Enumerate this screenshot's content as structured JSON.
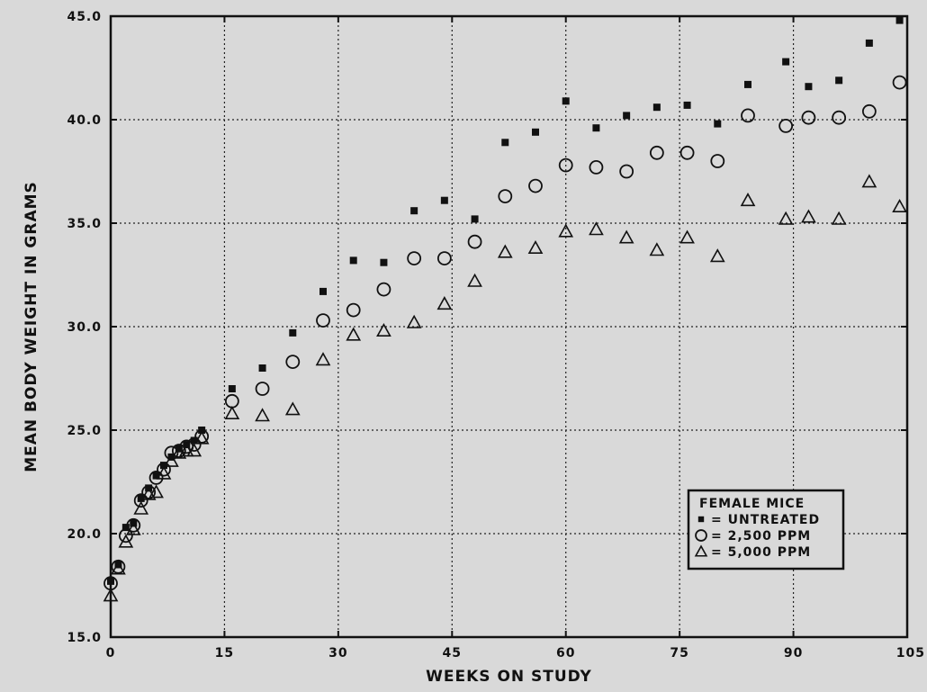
{
  "chart_data": {
    "type": "scatter",
    "xlabel": "WEEKS ON STUDY",
    "ylabel": "MEAN BODY WEIGHT IN GRAMS",
    "xlim": [
      0,
      105
    ],
    "ylim": [
      15,
      45
    ],
    "x_ticks": [
      0,
      15,
      30,
      45,
      60,
      75,
      90,
      105
    ],
    "x_tick_labels": [
      "0",
      "15",
      "30",
      "45",
      "60",
      "75",
      "90",
      "105"
    ],
    "y_ticks": [
      15,
      20,
      25,
      30,
      35,
      40,
      45
    ],
    "y_tick_labels": [
      "15.0",
      "20.0",
      "25.0",
      "30.0",
      "35.0",
      "40.0",
      "45.0"
    ],
    "grid": true,
    "legend_position": "bottom-right",
    "legend_title": "FEMALE MICE",
    "series": [
      {
        "name": "= UNTREATED",
        "marker": "square-filled",
        "color": "#111111",
        "x": [
          0,
          1,
          2,
          3,
          4,
          5,
          6,
          7,
          8,
          9,
          10,
          11,
          12,
          16,
          20,
          24,
          28,
          32,
          36,
          40,
          44,
          48,
          52,
          56,
          60,
          64,
          68,
          72,
          76,
          80,
          84,
          89,
          92,
          96,
          100,
          104
        ],
        "y": [
          17.7,
          18.5,
          20.3,
          20.5,
          21.7,
          22.2,
          22.8,
          23.3,
          23.7,
          24.1,
          24.3,
          24.5,
          25.0,
          27.0,
          28.0,
          29.7,
          31.7,
          33.2,
          33.1,
          35.6,
          36.1,
          35.2,
          38.9,
          39.4,
          40.9,
          39.6,
          40.2,
          40.6,
          40.7,
          39.8,
          41.7,
          42.8,
          41.6,
          41.9,
          43.7,
          44.8
        ]
      },
      {
        "name": "= 2,500 PPM",
        "marker": "circle-open",
        "color": "#111111",
        "x": [
          0,
          1,
          2,
          3,
          4,
          5,
          6,
          7,
          8,
          9,
          10,
          11,
          12,
          16,
          20,
          24,
          28,
          32,
          36,
          40,
          44,
          48,
          52,
          56,
          60,
          64,
          68,
          72,
          76,
          80,
          84,
          89,
          92,
          96,
          100,
          104
        ],
        "y": [
          17.6,
          18.4,
          19.9,
          20.4,
          21.6,
          22.0,
          22.7,
          23.1,
          23.9,
          24.0,
          24.2,
          24.3,
          24.7,
          26.4,
          27.0,
          28.3,
          30.3,
          30.8,
          31.8,
          33.3,
          33.3,
          34.1,
          36.3,
          36.8,
          37.8,
          37.7,
          37.5,
          38.4,
          38.4,
          38.0,
          40.2,
          39.7,
          40.1,
          40.1,
          40.4,
          41.8
        ]
      },
      {
        "name": "= 5,000 PPM",
        "marker": "triangle-open",
        "color": "#111111",
        "x": [
          0,
          1,
          2,
          3,
          4,
          5,
          6,
          7,
          8,
          9,
          10,
          11,
          12,
          16,
          20,
          24,
          28,
          32,
          36,
          40,
          44,
          48,
          52,
          56,
          60,
          64,
          68,
          72,
          76,
          80,
          84,
          89,
          92,
          96,
          100,
          104
        ],
        "y": [
          17.0,
          18.3,
          19.6,
          20.2,
          21.2,
          21.9,
          22.0,
          22.9,
          23.5,
          23.9,
          24.0,
          24.0,
          24.6,
          25.8,
          25.7,
          26.0,
          28.4,
          29.6,
          29.8,
          30.2,
          31.1,
          32.2,
          33.6,
          33.8,
          34.6,
          34.7,
          34.3,
          33.7,
          34.3,
          33.4,
          36.1,
          35.2,
          35.3,
          35.2,
          37.0,
          35.8
        ]
      }
    ]
  }
}
